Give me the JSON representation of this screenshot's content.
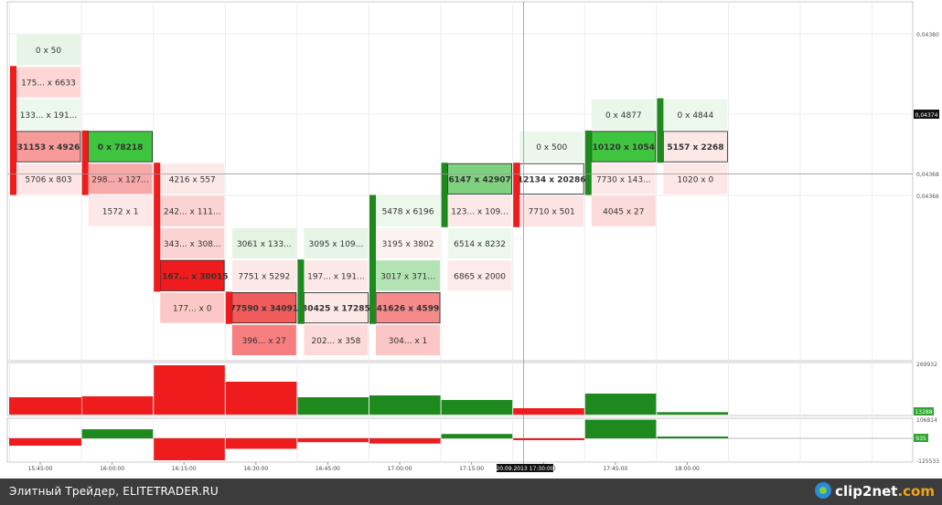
{
  "chart_data": {
    "type": "footprint",
    "price_ticks": [
      "0,04380",
      "0,04374",
      "0,04368",
      "0,04366"
    ],
    "current_price": "0,04374",
    "time_labels": [
      "15:45:00",
      "16:00:00",
      "16:15:00",
      "16:30:00",
      "16:45:00",
      "17:00:00",
      "17:15:00",
      "17:30:00",
      "17:45:00",
      "18:00:00"
    ],
    "crosshair_label": "20.09.2013 17:30:00",
    "columns": [
      {
        "time": "15:45:00",
        "cells": [
          {
            "row": 0,
            "text": "0 x 50",
            "color": "#e6f5e6"
          },
          {
            "row": 1,
            "text": "175... x 6633",
            "color": "#fdd6d6"
          },
          {
            "row": 2,
            "text": "133... x 191...",
            "color": "#ecf8ec"
          },
          {
            "row": 3,
            "text": "31153 x 4926",
            "color": "#f79a9a",
            "bold": true,
            "box": true
          },
          {
            "row": 4,
            "text": "5706 x 803",
            "color": "#fde5e5"
          }
        ],
        "bar": {
          "from": 1,
          "to": 4,
          "color": "#ee1c1c"
        }
      },
      {
        "time": "16:00:00",
        "cells": [
          {
            "row": 3,
            "text": "0 x 78218",
            "color": "#3fc43f",
            "bold": true,
            "box": true
          },
          {
            "row": 4,
            "text": "298... x 127...",
            "color": "#f7a9a9"
          },
          {
            "row": 5,
            "text": "1572 x 1",
            "color": "#fde8e8"
          }
        ],
        "bar": {
          "from": 3,
          "to": 4,
          "color": "#ee1c1c"
        }
      },
      {
        "time": "16:15:00",
        "cells": [
          {
            "row": 4,
            "text": "4216 x 557",
            "color": "#fde8e8"
          },
          {
            "row": 5,
            "text": "242... x 111...",
            "color": "#fcd3d3"
          },
          {
            "row": 6,
            "text": "343... x 308...",
            "color": "#fcd3d3"
          },
          {
            "row": 7,
            "text": "1167... x 30015",
            "color": "#ee1c1c",
            "bold": true,
            "box": true
          },
          {
            "row": 8,
            "text": "177... x 0",
            "color": "#fbc7c7"
          }
        ],
        "bar": {
          "from": 4,
          "to": 7,
          "color": "#ee1c1c"
        }
      },
      {
        "time": "16:30:00",
        "cells": [
          {
            "row": 6,
            "text": "3061 x 133...",
            "color": "#e3f4e3"
          },
          {
            "row": 7,
            "text": "7751 x 5292",
            "color": "#fde8e8"
          },
          {
            "row": 8,
            "text": "77590 x 34091",
            "color": "#f05c5c",
            "bold": true,
            "box": true
          },
          {
            "row": 9,
            "text": "396... x 27",
            "color": "#f77e7e"
          }
        ],
        "bar": {
          "from": 8,
          "to": 8,
          "color": "#ee1c1c"
        }
      },
      {
        "time": "16:45:00",
        "cells": [
          {
            "row": 6,
            "text": "3095 x 109...",
            "color": "#e6f5e6"
          },
          {
            "row": 7,
            "text": "197... x 191...",
            "color": "#fde8e8"
          },
          {
            "row": 8,
            "text": "30425 x 17285",
            "color": "#fde8e8",
            "bold": true,
            "box": true
          },
          {
            "row": 9,
            "text": "202... x 358",
            "color": "#fcdada"
          }
        ],
        "bar": {
          "from": 7,
          "to": 8,
          "color": "#1e8a1e"
        }
      },
      {
        "time": "17:00:00",
        "cells": [
          {
            "row": 5,
            "text": "5478 x 6196",
            "color": "#ecf8ec"
          },
          {
            "row": 6,
            "text": "3195 x 3802",
            "color": "#fdf2f2"
          },
          {
            "row": 7,
            "text": "3017 x 371...",
            "color": "#b3e3b3"
          },
          {
            "row": 8,
            "text": "41626 x 4599",
            "color": "#f58a8a",
            "bold": true,
            "box": true
          },
          {
            "row": 9,
            "text": "304... x 1",
            "color": "#fbc6c6"
          }
        ],
        "bar": {
          "from": 5,
          "to": 8,
          "color": "#1e8a1e"
        }
      },
      {
        "time": "17:15:00",
        "cells": [
          {
            "row": 4,
            "text": "6147 x 42907",
            "color": "#7fd17f",
            "bold": true,
            "box": true
          },
          {
            "row": 5,
            "text": "123... x 109...",
            "color": "#fde8e8"
          },
          {
            "row": 6,
            "text": "6514 x 8232",
            "color": "#edf8ed"
          },
          {
            "row": 7,
            "text": "6865 x 2000",
            "color": "#fdeaea"
          }
        ],
        "bar": {
          "from": 4,
          "to": 5,
          "color": "#1e8a1e"
        }
      },
      {
        "time": "17:30:00",
        "cells": [
          {
            "row": 3,
            "text": "0 x 500",
            "color": "#eaf7ea"
          },
          {
            "row": 4,
            "text": "12134 x 20286",
            "color": "#ffffff",
            "bold": true,
            "box": true
          },
          {
            "row": 5,
            "text": "7710 x 501",
            "color": "#fde3e3"
          }
        ],
        "bar": {
          "from": 4,
          "to": 5,
          "color": "#ee1c1c"
        }
      },
      {
        "time": "17:45:00",
        "cells": [
          {
            "row": 2,
            "text": "0 x 4877",
            "color": "#e9f7e9"
          },
          {
            "row": 3,
            "text": "10120 x 1054",
            "color": "#3fc43f",
            "bold": true,
            "box": true
          },
          {
            "row": 4,
            "text": "7730 x 143...",
            "color": "#fde8e8"
          },
          {
            "row": 5,
            "text": "4045 x 27",
            "color": "#fcdada"
          }
        ],
        "bar": {
          "from": 3,
          "to": 4,
          "color": "#1e8a1e"
        }
      },
      {
        "time": "18:00:00",
        "cells": [
          {
            "row": 2,
            "text": "0 x 4844",
            "color": "#ecf8ec"
          },
          {
            "row": 3,
            "text": "5157 x 2268",
            "color": "#fde8e8",
            "bold": true,
            "box": true
          },
          {
            "row": 4,
            "text": "1020 x 0",
            "color": "#fde6e6"
          }
        ],
        "bar": {
          "from": 2,
          "to": 3,
          "color": "#1e8a1e"
        }
      }
    ],
    "volume": {
      "max_label": "269932",
      "value_label": "13288",
      "values": [
        95000,
        100000,
        269932,
        180000,
        95000,
        105000,
        80000,
        35000,
        115000,
        13288
      ],
      "colors": [
        "#ee1c1c",
        "#ee1c1c",
        "#ee1c1c",
        "#ee1c1c",
        "#1e8a1e",
        "#1e8a1e",
        "#1e8a1e",
        "#ee1c1c",
        "#1e8a1e",
        "#1e8a1e"
      ]
    },
    "delta": {
      "max_label": "106814",
      "min_label": "-125533",
      "value_label": "935",
      "values": [
        -42000,
        52000,
        -125533,
        -60000,
        -22000,
        -30000,
        25000,
        -1000,
        106814,
        935
      ],
      "colors": [
        "#ee1c1c",
        "#1e8a1e",
        "#ee1c1c",
        "#ee1c1c",
        "#ee1c1c",
        "#ee1c1c",
        "#1e8a1e",
        "#ee1c1c",
        "#1e8a1e",
        "#1e8a1e"
      ]
    }
  },
  "footer": {
    "left_text": "Элитный Трейдер, ELITETRADER.RU",
    "logo_text_main": "clip2net",
    "logo_text_dot": ".com"
  }
}
